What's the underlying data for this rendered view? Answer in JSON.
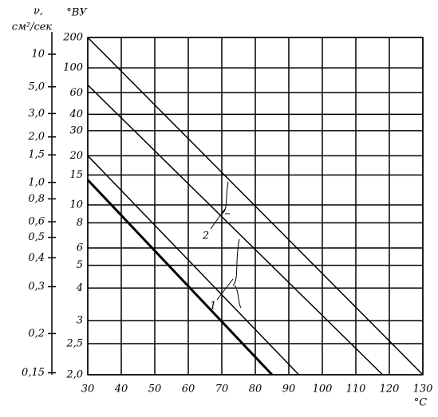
{
  "chart_data": {
    "type": "line",
    "y_label": "°ВУ",
    "x_label": "°С",
    "y2_label": "ν,",
    "y2_unit": "см²/сек",
    "xlim": [
      30,
      130
    ],
    "xticks": [
      30,
      40,
      50,
      60,
      70,
      80,
      90,
      100,
      110,
      120,
      130
    ],
    "ylim": [
      2,
      200
    ],
    "yticks": [
      {
        "value": 2,
        "label": "2,0"
      },
      {
        "value": 2.5,
        "label": "2,5"
      },
      3,
      4,
      5,
      6,
      8,
      10,
      15,
      20,
      30,
      40,
      60,
      100,
      200
    ],
    "y2lim": [
      0.148,
      14.8
    ],
    "y2ticks": [
      {
        "value": 0.15,
        "label": "0,15"
      },
      {
        "value": 0.2,
        "label": "0,2"
      },
      {
        "value": 0.3,
        "label": "0,3"
      },
      {
        "value": 0.4,
        "label": "0,4"
      },
      {
        "value": 0.5,
        "label": "0,5"
      },
      {
        "value": 0.6,
        "label": "0,6"
      },
      {
        "value": 0.8,
        "label": "0,8"
      },
      {
        "value": 1.0,
        "label": "1,0"
      },
      {
        "value": 1.5,
        "label": "1,5"
      },
      {
        "value": 2.0,
        "label": "2,0"
      },
      {
        "value": 3.0,
        "label": "3,0"
      },
      {
        "value": 5.0,
        "label": "5,0"
      },
      10
    ],
    "grid": true,
    "series": [
      {
        "color": "#000000",
        "width": 1.5,
        "x": [
          30,
          130
        ],
        "values": [
          200,
          2
        ]
      },
      {
        "color": "#000000",
        "width": 1.5,
        "x": [
          30,
          118
        ],
        "values": [
          70,
          2
        ]
      },
      {
        "color": "#000000",
        "width": 1.5,
        "x": [
          30,
          93
        ],
        "values": [
          20,
          2
        ]
      },
      {
        "color": "#000000",
        "width": 3,
        "x": [
          30,
          85
        ],
        "values": [
          14,
          2
        ]
      }
    ],
    "annotations": [
      "2",
      "1"
    ]
  }
}
